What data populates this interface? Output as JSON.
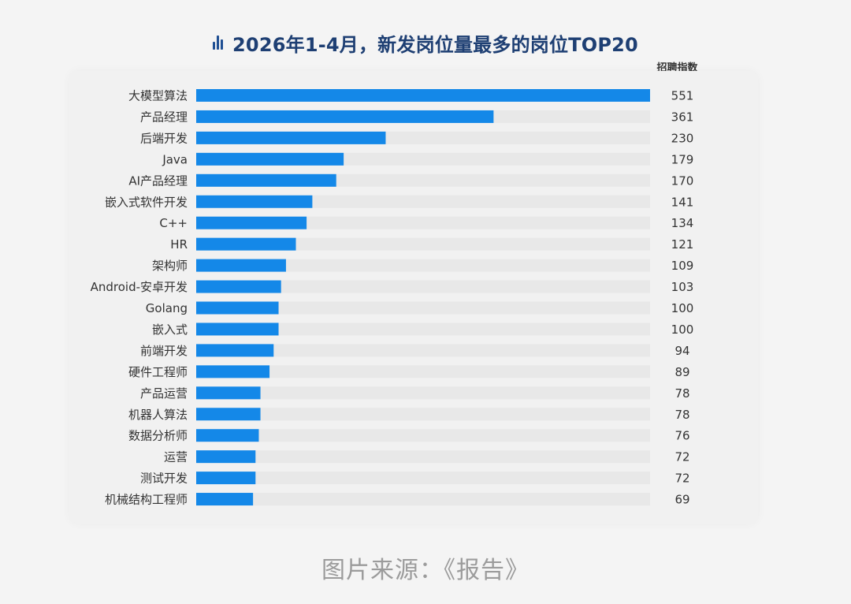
{
  "header": {
    "title": "2026年1-4月，新发岗位量最多的岗位TOP20",
    "title_icon": "bar-chart-icon",
    "value_column_header": "招聘指数"
  },
  "footer": {
    "source": "图片来源：《报告》"
  },
  "colors": {
    "bar": "#1488e8",
    "track": "#e8e8e8",
    "title": "#1e3f73"
  },
  "chart_data": {
    "type": "bar",
    "orientation": "horizontal",
    "title": "2026年1-4月，新发岗位量最多的岗位TOP20",
    "xlabel": "",
    "ylabel": "",
    "value_label": "招聘指数",
    "xlim": [
      0,
      551
    ],
    "grid": false,
    "legend": "none",
    "categories": [
      "大模型算法",
      "产品经理",
      "后端开发",
      "Java",
      "AI产品经理",
      "嵌入式软件开发",
      "C++",
      "HR",
      "架构师",
      "Android-安卓开发",
      "Golang",
      "嵌入式",
      "前端开发",
      "硬件工程师",
      "产品运营",
      "机器人算法",
      "数据分析师",
      "运营",
      "测试开发",
      "机械结构工程师"
    ],
    "values": [
      551,
      361,
      230,
      179,
      170,
      141,
      134,
      121,
      109,
      103,
      100,
      100,
      94,
      89,
      78,
      78,
      76,
      72,
      72,
      69
    ]
  }
}
